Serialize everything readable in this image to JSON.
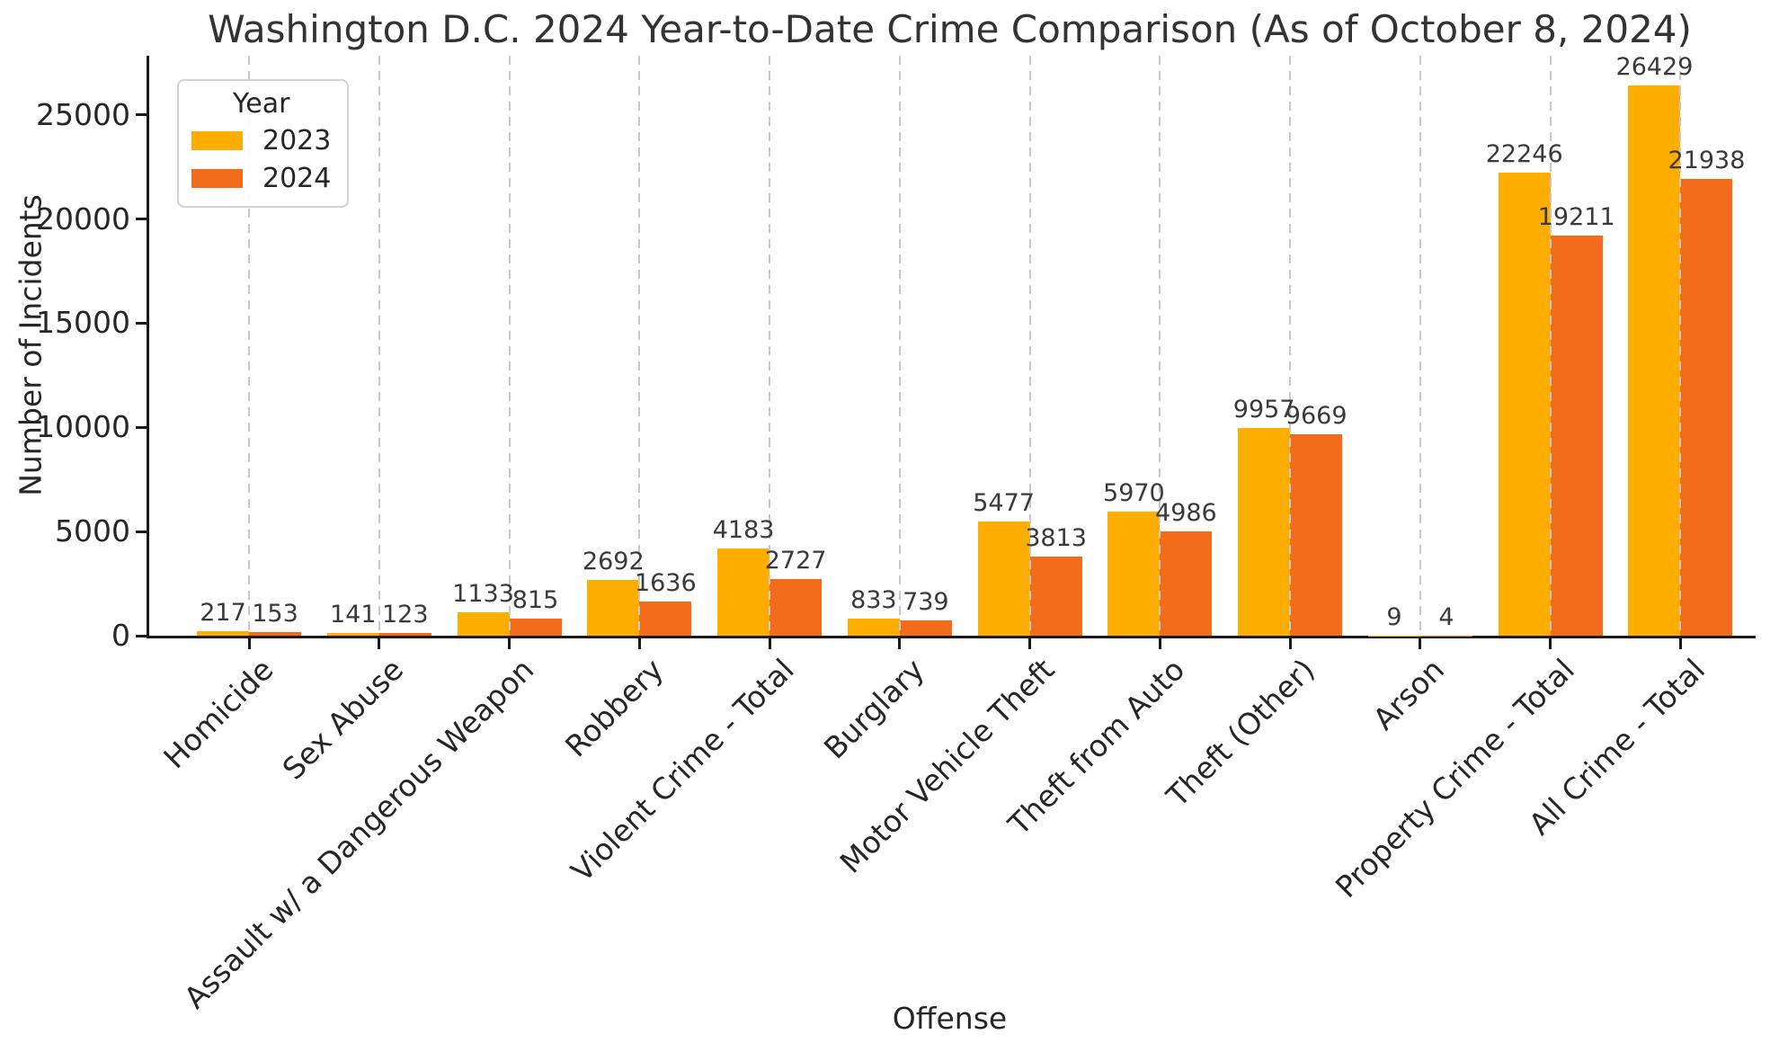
{
  "chart_data": {
    "type": "bar",
    "title": "Washington D.C. 2024 Year-to-Date Crime Comparison (As of October 8, 2024)",
    "xlabel": "Offense",
    "ylabel": "Number of Incidents",
    "legend_title": "Year",
    "legend_position": "upper left",
    "grid": "vertical dashed lines at each category center",
    "bar_value_labels": true,
    "ylim": [
      0,
      27840
    ],
    "yticks": [
      0,
      5000,
      10000,
      15000,
      20000,
      25000
    ],
    "categories": [
      "Homicide",
      "Sex Abuse",
      "Assault w/ a Dangerous Weapon",
      "Robbery",
      "Violent Crime - Total",
      "Burglary",
      "Motor Vehicle Theft",
      "Theft from Auto",
      "Theft (Other)",
      "Arson",
      "Property Crime - Total",
      "All Crime - Total"
    ],
    "series": [
      {
        "name": "2023",
        "color": "#FFAE00",
        "values": [
          217,
          141,
          1133,
          2692,
          4183,
          833,
          5477,
          5970,
          9957,
          9,
          22246,
          26429
        ]
      },
      {
        "name": "2024",
        "color": "#F26C1B",
        "values": [
          153,
          123,
          815,
          1636,
          2727,
          739,
          3813,
          4986,
          9669,
          4,
          19211,
          21938
        ]
      }
    ]
  }
}
